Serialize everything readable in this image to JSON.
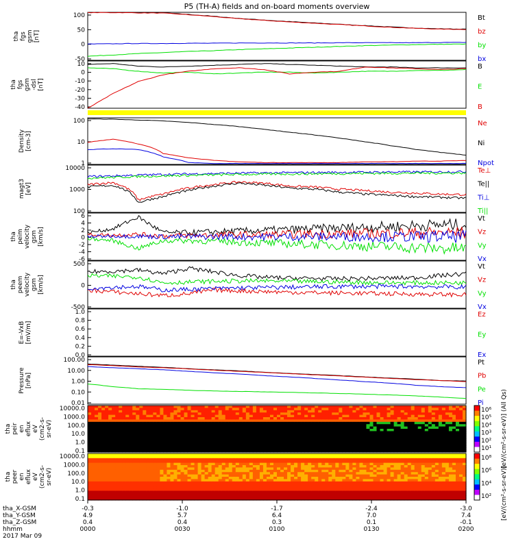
{
  "title": "P5 (TH-A) fields and on-board moments overview",
  "colors": {
    "black": "#000000",
    "red": "#e00000",
    "green": "#00e000",
    "blue": "#0000e0",
    "yellow": "#ffff00"
  },
  "time_axis": {
    "ticks": [
      {
        "x": "-0.3",
        "y": "4.9",
        "z": "0.4",
        "hhmm": "0000"
      },
      {
        "x": "-1.0",
        "y": "5.7",
        "z": "0.4",
        "hhmm": "0030"
      },
      {
        "x": "-1.7",
        "y": "6.4",
        "z": "0.3",
        "hhmm": "0100"
      },
      {
        "x": "-2.4",
        "y": "7.0",
        "z": "0.1",
        "hhmm": "0130"
      },
      {
        "x": "-3.0",
        "y": "7.4",
        "z": "-0.1",
        "hhmm": "0200"
      }
    ],
    "row_labels": [
      "tha_X-GSM",
      "tha_Y-GSM",
      "tha_Z-GSM",
      "hhmm"
    ],
    "date": "2017 Mar 09"
  },
  "chart_data": [
    {
      "type": "line",
      "id": "fgs",
      "ylabel": [
        "tha",
        "fgs",
        "gsm",
        "[nT]"
      ],
      "ticks": [
        "100",
        "50",
        "0",
        "-50"
      ],
      "ylim": [
        -75,
        105
      ],
      "series": [
        {
          "name": "Bt",
          "color": "#000000",
          "values": [
            105,
            105,
            104,
            103,
            97,
            90,
            82,
            76,
            70,
            65,
            60,
            55,
            50,
            46,
            43,
            42
          ]
        },
        {
          "name": "bz",
          "color": "#e00000",
          "values": [
            104,
            104,
            103,
            102,
            96,
            89,
            81,
            75,
            69,
            64,
            59,
            54,
            49,
            45,
            42,
            41
          ]
        },
        {
          "name": "by",
          "color": "#00e000",
          "values": [
            -60,
            -55,
            -50,
            -46,
            -42,
            -39,
            -35,
            -32,
            -29,
            -26,
            -23,
            -20,
            -18,
            -16,
            -15,
            -14
          ]
        },
        {
          "name": "bx",
          "color": "#0000e0",
          "values": [
            -14,
            -13,
            -12,
            -12,
            -11,
            -11,
            -10,
            -10,
            -10,
            -10,
            -9,
            -9,
            -9,
            -9,
            -8,
            -8
          ]
        }
      ]
    },
    {
      "type": "line",
      "id": "fgs-dsl",
      "ylabel": [
        "tha",
        "fgs",
        "gsm",
        "-dsl",
        "[nT]"
      ],
      "ticks": [
        "10",
        "0",
        "-10",
        "-20",
        "-30",
        "-40"
      ],
      "ylim": [
        -45,
        10
      ],
      "series": [
        {
          "name": "B",
          "color": "#000000",
          "values": [
            6,
            7,
            4,
            3,
            4,
            5,
            6,
            7,
            6,
            5,
            4,
            3,
            3,
            2,
            2,
            2
          ]
        },
        {
          "name": "E",
          "color": "#00e000",
          "values": [
            2,
            1,
            -2,
            -4,
            -3,
            -5,
            -4,
            -3,
            -3,
            -4,
            -3,
            -2,
            -2,
            -1,
            -1,
            0
          ]
        },
        {
          "name": "B",
          "color": "#e00000",
          "values": [
            -45,
            -28,
            -14,
            -6,
            -2,
            1,
            2,
            0,
            -5,
            -3,
            -2,
            3,
            2,
            1,
            0,
            1
          ]
        }
      ]
    },
    {
      "type": "line",
      "id": "density",
      "log": true,
      "ylabel": [
        "Density",
        "[cm-3]"
      ],
      "ticks": [
        "100",
        "10",
        "1"
      ],
      "ylim": [
        0.8,
        250
      ],
      "series": [
        {
          "name": "Ne",
          "color": "#e00000",
          "values": [
            12,
            18,
            10,
            3,
            1.8,
            1.3,
            1.1,
            1,
            1,
            1,
            1,
            1.1,
            1.1,
            1.2,
            1.2,
            1.3
          ]
        },
        {
          "name": "Ni",
          "color": "#000000",
          "values": [
            220,
            210,
            190,
            170,
            140,
            110,
            85,
            60,
            42,
            30,
            20,
            13,
            8,
            5,
            3.5,
            2.5
          ]
        },
        {
          "name": "Npot",
          "color": "#0000e0",
          "values": [
            5,
            5.5,
            5,
            2,
            1,
            0.9,
            0.9,
            0.9,
            0.9,
            0.9,
            0.9,
            0.9,
            0.9,
            0.9,
            0.9,
            0.9
          ]
        }
      ]
    },
    {
      "type": "line",
      "id": "temperature",
      "log": true,
      "ylabel": [
        "magt3",
        "[eV]"
      ],
      "ticks": [
        "10000",
        "1000",
        "100"
      ],
      "ylim": [
        50,
        11000
      ],
      "series": [
        {
          "name": "Te⊥",
          "color": "#e00000",
          "values": [
            1200,
            1500,
            200,
            400,
            800,
            1200,
            1600,
            1400,
            1000,
            900,
            700,
            600,
            500,
            450,
            400,
            380
          ]
        },
        {
          "name": "Te||",
          "color": "#000000",
          "values": [
            900,
            1100,
            150,
            300,
            600,
            1000,
            1400,
            1100,
            800,
            700,
            500,
            400,
            350,
            300,
            280,
            250
          ]
        },
        {
          "name": "Ti⊥",
          "color": "#0000e0",
          "values": [
            3000,
            3200,
            3500,
            3800,
            4000,
            4200,
            4400,
            4500,
            4600,
            4700,
            4800,
            4900,
            5000,
            5000,
            5100,
            5200
          ]
        },
        {
          "name": "Ti||",
          "color": "#00e000",
          "values": [
            2500,
            2700,
            3000,
            3200,
            3400,
            3600,
            3800,
            3900,
            4000,
            4100,
            4200,
            4300,
            4300,
            4400,
            4400,
            4500
          ]
        }
      ]
    },
    {
      "type": "line",
      "id": "peim-velocity",
      "ylabel": [
        "tha",
        "peim",
        "velocity",
        "gsm",
        "[km/s]"
      ],
      "ticks": [
        "6",
        "4",
        "2",
        "0",
        "-2",
        "-4",
        "-6"
      ],
      "ylim": [
        -6,
        6
      ],
      "series": [
        {
          "name": "Vt",
          "color": "#000000",
          "values": [
            1,
            2,
            5,
            1,
            1,
            1.2,
            1.4,
            1.6,
            1.8,
            2,
            2.2,
            2.4,
            2.6,
            2.8,
            3,
            3
          ]
        },
        {
          "name": "Vz",
          "color": "#e00000",
          "values": [
            0.5,
            0.4,
            0.6,
            0.2,
            0.3,
            0.4,
            0.5,
            0.5,
            0.6,
            0.7,
            0.8,
            0.8,
            0.9,
            1,
            1,
            1
          ]
        },
        {
          "name": "Vy",
          "color": "#00e000",
          "values": [
            -0.5,
            -1,
            -3,
            -1,
            -1,
            -1.2,
            -1.4,
            -1.6,
            -1.8,
            -2,
            -2.2,
            -2.4,
            -2.6,
            -2.8,
            -3,
            -3
          ]
        },
        {
          "name": "Vx",
          "color": "#0000e0",
          "values": [
            0,
            0.2,
            0.1,
            0,
            0,
            0,
            0,
            0,
            0,
            0,
            0,
            0,
            0,
            0,
            0,
            0
          ]
        }
      ]
    },
    {
      "type": "line",
      "id": "peem-velocity",
      "ylabel": [
        "tha",
        "peem",
        "velocity",
        "gsm",
        "[km/s]"
      ],
      "ticks": [
        "500",
        "0",
        "-500"
      ],
      "ylim": [
        -600,
        700
      ],
      "series": [
        {
          "name": "Vt",
          "color": "#000000",
          "values": [
            400,
            420,
            450,
            350,
            500,
            400,
            300,
            250,
            230,
            220,
            210,
            220,
            230,
            240,
            300,
            350
          ]
        },
        {
          "name": "Vz",
          "color": "#e00000",
          "values": [
            -100,
            -150,
            -200,
            -250,
            -200,
            -100,
            -120,
            -140,
            -160,
            -170,
            -180,
            -190,
            -200,
            -210,
            -220,
            -230
          ]
        },
        {
          "name": "Vy",
          "color": "#00e000",
          "values": [
            300,
            280,
            260,
            100,
            120,
            140,
            150,
            150,
            140,
            130,
            120,
            110,
            100,
            100,
            100,
            100
          ]
        },
        {
          "name": "Vx",
          "color": "#0000e0",
          "values": [
            -50,
            -20,
            0,
            -100,
            -80,
            -60,
            -40,
            -30,
            -20,
            -10,
            0,
            0,
            0,
            0,
            -10,
            -20
          ]
        }
      ]
    },
    {
      "type": "line",
      "id": "efield",
      "ylabel": [
        "E=-VxB",
        "[mV/m]"
      ],
      "ticks": [
        "1.0",
        "0.8",
        "0.6",
        "0.4",
        "0.2",
        "0.0"
      ],
      "ylim": [
        0,
        1
      ],
      "series": [
        {
          "name": "Ez",
          "color": "#e00000",
          "values": []
        },
        {
          "name": "Ey",
          "color": "#00e000",
          "values": []
        },
        {
          "name": "Ex",
          "color": "#0000e0",
          "values": []
        }
      ]
    },
    {
      "type": "line",
      "id": "pressure",
      "log": true,
      "ylabel": [
        "Pressure",
        "[nPa]"
      ],
      "ticks": [
        "100.00",
        "10.00",
        "1.00",
        "0.10",
        "0.01"
      ],
      "ylim": [
        0.01,
        100
      ],
      "series": [
        {
          "name": "Pt",
          "color": "#000000",
          "values": [
            25,
            20,
            16,
            13,
            10,
            8,
            6.5,
            5,
            4,
            3.2,
            2.6,
            2,
            1.6,
            1.3,
            1,
            0.9
          ]
        },
        {
          "name": "Pb",
          "color": "#e00000",
          "values": [
            22,
            18,
            14,
            12,
            9.5,
            7.5,
            6,
            4.8,
            3.8,
            3,
            2.4,
            1.9,
            1.5,
            1.2,
            1,
            0.8
          ]
        },
        {
          "name": "Pe",
          "color": "#00e000",
          "values": [
            0.5,
            0.3,
            0.2,
            0.18,
            0.15,
            0.13,
            0.12,
            0.11,
            0.1,
            0.09,
            0.08,
            0.07,
            0.06,
            0.05,
            0.04,
            0.03
          ]
        },
        {
          "name": "Pi",
          "color": "#0000e0",
          "values": [
            15,
            12,
            10,
            8,
            6,
            4.5,
            3.5,
            2.6,
            2,
            1.5,
            1.1,
            0.8,
            0.6,
            0.4,
            0.3,
            0.25
          ]
        }
      ]
    },
    {
      "type": "heatmap",
      "id": "peir",
      "ylabel": [
        "tha",
        "peir",
        "en",
        "eflux",
        "eV",
        "(cm2-s-",
        "sr-eV)"
      ],
      "ticks": [
        "10000.0",
        "1000.0",
        "100.0",
        "10.0",
        "1.0",
        "0.1"
      ]
    },
    {
      "type": "heatmap",
      "id": "peer",
      "ylabel": [
        "tha",
        "peer",
        "en",
        "eflux",
        "eV",
        "(cm2-s-",
        "sr-eV)"
      ],
      "ticks": [
        "10000.0",
        "1000.0",
        "100.0",
        "10.0",
        "1.0",
        "0.1"
      ]
    }
  ],
  "colorbar": {
    "upper_ticks": [
      "10⁶",
      "10⁵",
      "10⁴",
      "10³",
      "10²",
      "10¹"
    ],
    "lower_ticks": [
      "10⁸",
      "10⁶",
      "10⁴",
      "10²"
    ],
    "upper_label": "[eV/(cm²-s-sr-eV)] (All Qs)",
    "lower_label": "[eV/(cm²-s-sr-eV)]"
  }
}
